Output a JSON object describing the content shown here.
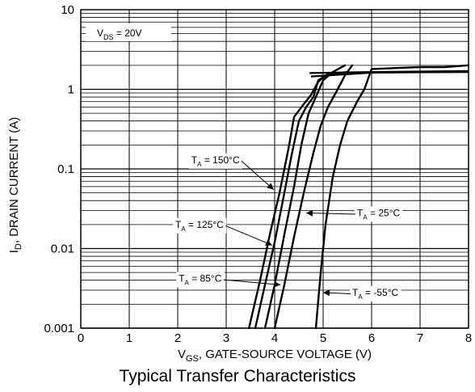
{
  "chart_data": {
    "type": "line",
    "title": "Typical Transfer Characteristics",
    "xlabel_main": "V",
    "xlabel_sub": "GS",
    "xlabel_rest": ", GATE-SOURCE VOLTAGE (V)",
    "ylabel_main": "I",
    "ylabel_sub": "D",
    "ylabel_rest": ", DRAIN CURRENT (A)",
    "x_scale": "linear",
    "y_scale": "log",
    "xlim": [
      0,
      8
    ],
    "ylim": [
      0.001,
      10
    ],
    "x_ticks": [
      "0",
      "1",
      "2",
      "3",
      "4",
      "5",
      "6",
      "7",
      "8"
    ],
    "y_ticks": [
      {
        "value": 10,
        "label": "10"
      },
      {
        "value": 1,
        "label": "1"
      },
      {
        "value": 0.1,
        "label": "0.1"
      },
      {
        "value": 0.01,
        "label": "0.01"
      },
      {
        "value": 0.001,
        "label": "0.001"
      }
    ],
    "grid": true,
    "legend_box": {
      "main": "V",
      "sub": "DS",
      "rest": " = 20V"
    },
    "series": [
      {
        "name": "T_A = 150°C",
        "x": [
          3.47,
          3.7,
          3.9,
          4.1,
          4.3,
          4.4,
          4.6,
          4.75,
          4.9,
          5.05,
          5.2
        ],
        "y": [
          0.001,
          0.004,
          0.015,
          0.05,
          0.2,
          0.45,
          0.65,
          0.85,
          1.25,
          1.5,
          1.6
        ]
      },
      {
        "name": "T_A = 125°C",
        "x": [
          3.6,
          3.8,
          4.0,
          4.2,
          4.35,
          4.5,
          4.65,
          4.8,
          4.9,
          5.1,
          5.5
        ],
        "y": [
          0.001,
          0.0035,
          0.012,
          0.05,
          0.15,
          0.4,
          0.6,
          0.8,
          1.3,
          1.55,
          1.65
        ]
      },
      {
        "name": "T_A = 85°C",
        "x": [
          3.8,
          4.0,
          4.2,
          4.4,
          4.55,
          4.7,
          4.85,
          5.0,
          5.2,
          5.45
        ],
        "y": [
          0.001,
          0.0035,
          0.015,
          0.06,
          0.2,
          0.5,
          0.8,
          1.3,
          1.65,
          2.0
        ]
      },
      {
        "name": "T_A = 25°C",
        "x": [
          4.0,
          4.2,
          4.4,
          4.6,
          4.8,
          4.95,
          5.1,
          5.3,
          5.45,
          5.6
        ],
        "y": [
          0.001,
          0.0035,
          0.014,
          0.05,
          0.16,
          0.35,
          0.6,
          1.0,
          1.5,
          2.0
        ]
      },
      {
        "name": "T_A = -55°C",
        "x": [
          4.85,
          4.95,
          5.05,
          5.2,
          5.35,
          5.5,
          5.7,
          5.85,
          6.0,
          6.5,
          7.0,
          7.5,
          8.0
        ],
        "y": [
          0.001,
          0.005,
          0.02,
          0.08,
          0.2,
          0.4,
          0.7,
          1.0,
          1.8,
          1.85,
          1.9,
          1.9,
          2.0
        ]
      }
    ],
    "flat_lines": [
      {
        "x": [
          4.72,
          6.0,
          8.0
        ],
        "y": [
          1.6,
          1.65,
          1.7
        ]
      },
      {
        "x": [
          4.75,
          6.0,
          8.0
        ],
        "y": [
          1.45,
          1.62,
          1.65
        ]
      }
    ],
    "annotations": [
      {
        "main": "T",
        "sub": "A",
        "rest": " = 150°C",
        "tx": 2.28,
        "ty": 0.13
      },
      {
        "main": "T",
        "sub": "A",
        "rest": " = 125°C",
        "tx": 1.95,
        "ty": 0.02
      },
      {
        "main": "T",
        "sub": "A",
        "rest": " = 85°C",
        "tx": 2.02,
        "ty": 0.0042
      },
      {
        "main": "T",
        "sub": "A",
        "rest": " = 25°C",
        "tx": 5.7,
        "ty": 0.028
      },
      {
        "main": "T",
        "sub": "A",
        "rest": " = -55°C",
        "tx": 5.6,
        "ty": 0.0028
      }
    ]
  }
}
